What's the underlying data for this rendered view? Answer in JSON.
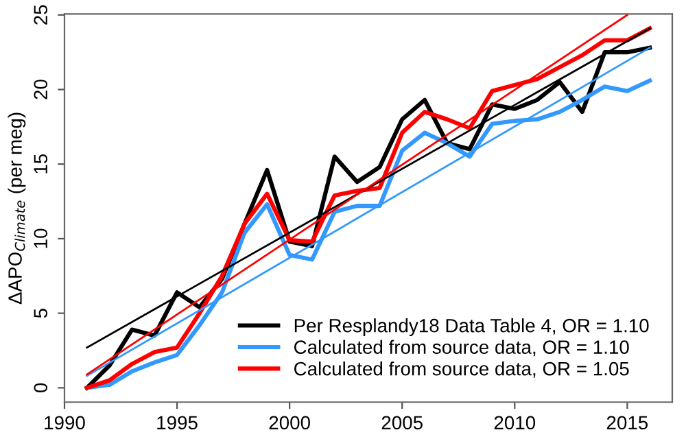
{
  "chart_data": {
    "type": "line",
    "ylabel": "ΔAPO$_{Climate}$ (per meg)",
    "x": [
      1991,
      1992,
      1993,
      1994,
      1995,
      1996,
      1997,
      1998,
      1999,
      2000,
      2001,
      2002,
      2003,
      2004,
      2005,
      2006,
      2007,
      2008,
      2009,
      2010,
      2011,
      2012,
      2013,
      2014,
      2015,
      2016
    ],
    "series": [
      {
        "name": "Per Resplandy18 Data Table 4, OR = 1.10",
        "color": "#000000",
        "values": [
          0.0,
          1.5,
          3.9,
          3.5,
          6.4,
          5.4,
          7.3,
          11.0,
          14.6,
          9.8,
          9.5,
          15.5,
          13.8,
          14.8,
          18.0,
          19.3,
          16.4,
          16.0,
          19.0,
          18.7,
          19.3,
          20.5,
          18.5,
          22.5,
          22.5,
          22.8
        ]
      },
      {
        "name": "Calculated from source data, OR = 1.10",
        "color": "#3399ff",
        "values": [
          0.0,
          0.2,
          1.1,
          1.7,
          2.2,
          4.2,
          6.4,
          10.4,
          12.3,
          8.9,
          8.6,
          11.8,
          12.2,
          12.2,
          15.9,
          17.1,
          16.4,
          15.5,
          17.7,
          17.9,
          18.0,
          18.5,
          19.3,
          20.2,
          19.9,
          20.6
        ]
      },
      {
        "name": "Calculated from source data, OR = 1.05",
        "color": "#ff0000",
        "values": [
          0.0,
          0.5,
          1.6,
          2.4,
          2.7,
          5.0,
          7.5,
          11.0,
          13.0,
          9.9,
          9.8,
          12.9,
          13.2,
          13.4,
          17.1,
          18.5,
          18.0,
          17.4,
          19.9,
          20.3,
          20.7,
          21.5,
          22.3,
          23.3,
          23.3,
          24.1
        ]
      },
      {
        "color": "#000000",
        "x": [
          1991,
          2016
        ],
        "values": [
          2.7,
          24.1
        ]
      },
      {
        "color": "#3399ff",
        "x": [
          1991,
          2016
        ],
        "values": [
          0.8,
          22.8
        ]
      },
      {
        "color": "#ff0000",
        "x": [
          1991,
          2015
        ],
        "values": [
          0.9,
          25.0
        ]
      }
    ],
    "xlim": [
      1990,
      2017
    ],
    "ylim": [
      -0.96,
      25.06
    ],
    "xticks": [
      1990,
      1995,
      2000,
      2005,
      2010,
      2015
    ],
    "yticks": [
      0,
      5,
      10,
      15,
      20,
      25
    ],
    "grid": false,
    "legend": "bottom right",
    "marker": "none",
    "line_style": "solid"
  }
}
